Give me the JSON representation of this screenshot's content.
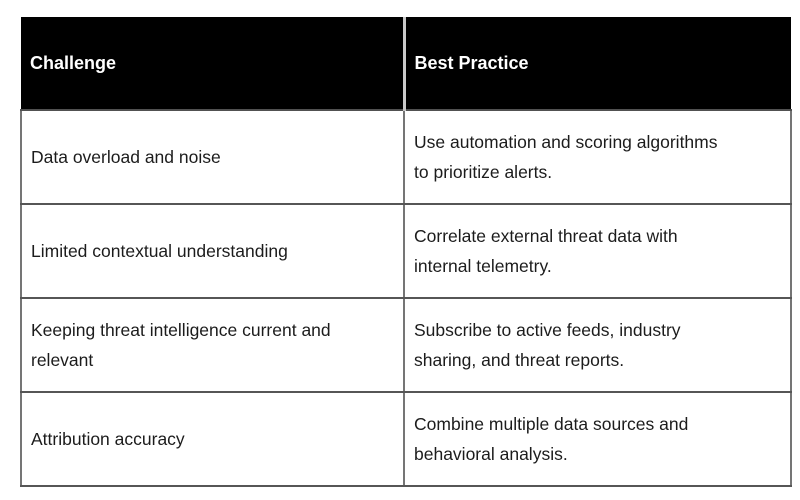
{
  "page": {
    "background": "#ffffff"
  },
  "table": {
    "columns": [
      {
        "label": "Challenge"
      },
      {
        "label": "Best Practice"
      }
    ],
    "rows": [
      {
        "challenge": "Data overload and noise",
        "best_practice": "Use automation and scoring algorithms\nto prioritize alerts."
      },
      {
        "challenge": "Limited contextual understanding",
        "best_practice": "Correlate external threat data with\ninternal telemetry."
      },
      {
        "challenge": "Keeping threat intelligence current and\nrelevant",
        "best_practice": "Subscribe to active feeds, industry\nsharing, and threat reports."
      },
      {
        "challenge": "Attribution accuracy",
        "best_practice": "Combine multiple data sources and\nbehavioral analysis."
      }
    ],
    "colors": {
      "header_bg": "#000000",
      "header_text": "#ffffff",
      "body_text": "#1c1c1c",
      "row_border": "#565656",
      "column_border": "#757575",
      "header_divider": "#c9c9c9"
    }
  }
}
